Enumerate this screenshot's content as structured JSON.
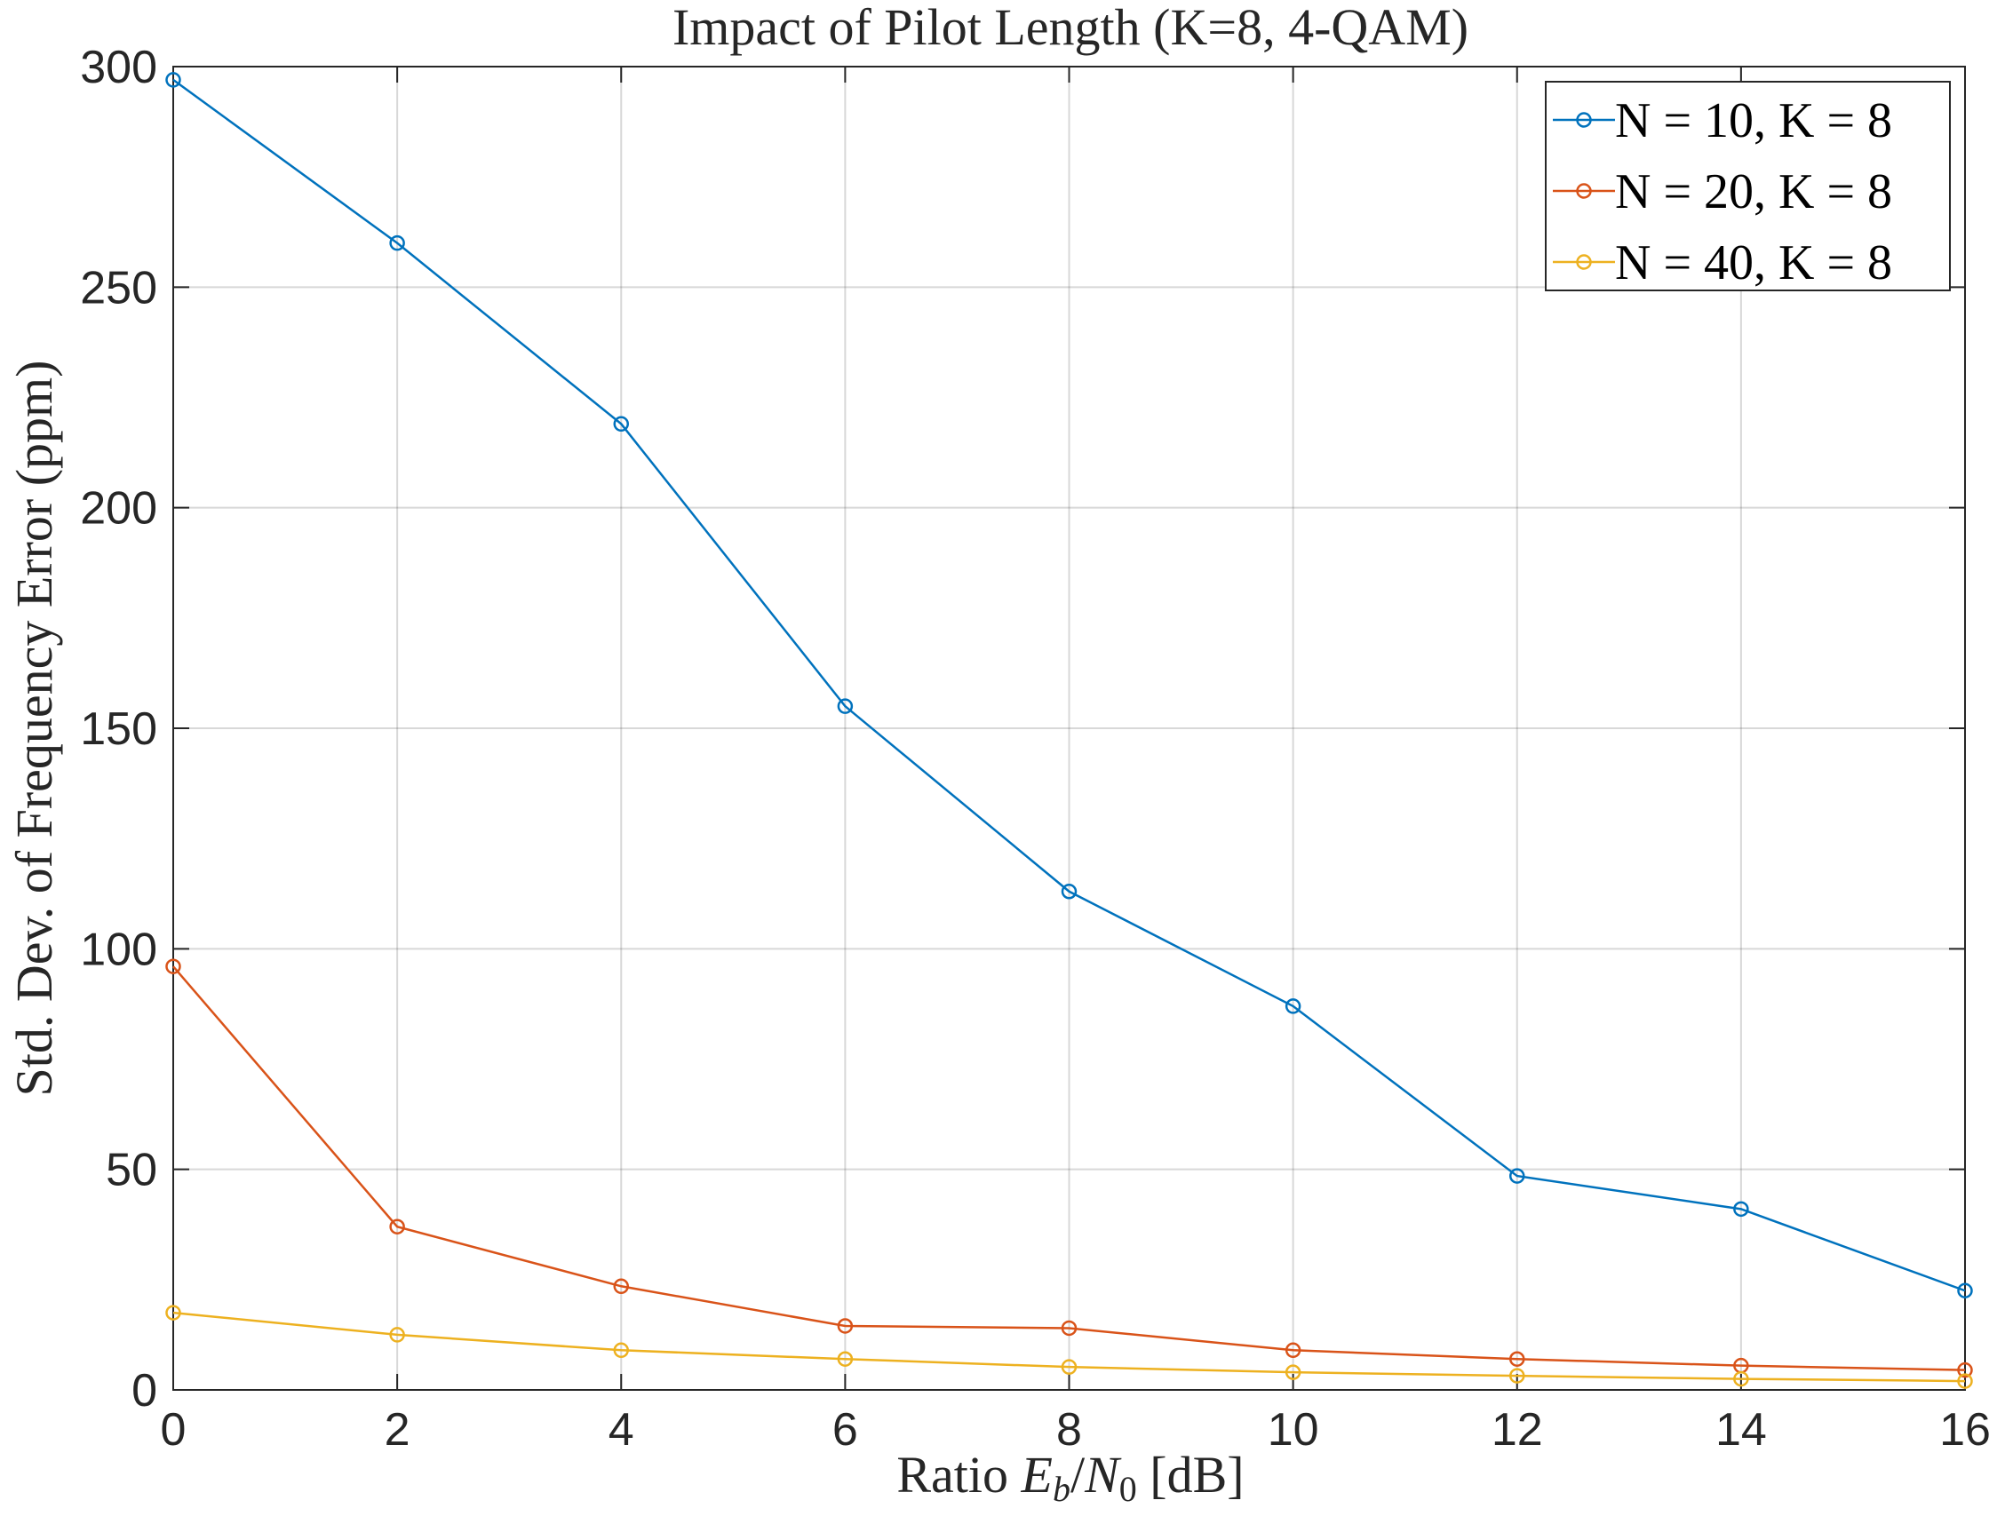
{
  "chart_data": {
    "type": "line",
    "title": "Impact of Pilot Length (K=8, 4-QAM)",
    "xlabel": {
      "prefix": "Ratio ",
      "e": "E",
      "b": "b",
      "slash": "/",
      "n": "N",
      "zero": "0",
      "suffix": " [dB]"
    },
    "ylabel": "Std. Dev. of Frequency Error (ppm)",
    "xlim": [
      0,
      16
    ],
    "ylim": [
      0,
      300
    ],
    "xticks": [
      0,
      2,
      4,
      6,
      8,
      10,
      12,
      14,
      16
    ],
    "yticks": [
      0,
      50,
      100,
      150,
      200,
      250,
      300
    ],
    "grid": true,
    "legend_position": "top-right",
    "x": [
      0,
      2,
      4,
      6,
      8,
      10,
      12,
      14,
      16
    ],
    "series": [
      {
        "name": "N = 10, K = 8",
        "color": "#0072BD",
        "values": [
          297,
          260,
          219,
          155,
          113,
          87,
          48.5,
          41,
          22.5
        ]
      },
      {
        "name": "N = 20, K = 8",
        "color": "#D95319",
        "values": [
          96,
          37,
          23.5,
          14.5,
          14,
          9,
          7,
          5.5,
          4.5
        ]
      },
      {
        "name": "N = 40, K = 8",
        "color": "#EDB120",
        "values": [
          17.5,
          12.5,
          9,
          7,
          5.2,
          4,
          3.2,
          2.5,
          2
        ]
      }
    ]
  }
}
